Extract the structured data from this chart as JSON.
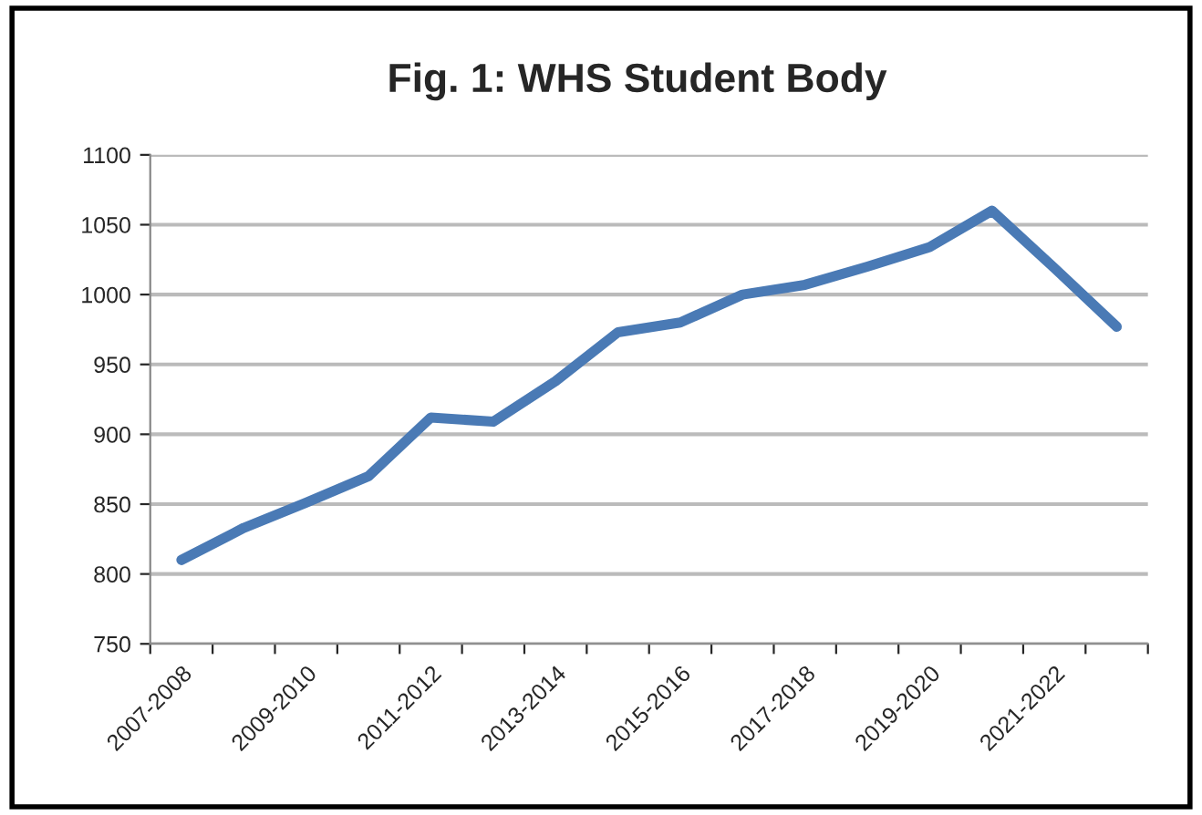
{
  "chart_data": {
    "type": "line",
    "title": "Fig. 1: WHS Student Body",
    "categories": [
      "2007-2008",
      null,
      "2009-2010",
      null,
      "2011-2012",
      null,
      "2013-2014",
      null,
      "2015-2016",
      null,
      "2017-2018",
      null,
      "2019-2020",
      null,
      "2021-2022",
      null
    ],
    "series": [
      {
        "color": "#4a7ab5",
        "values": [
          810,
          833,
          851,
          870,
          912,
          909,
          938,
          973,
          980,
          1000,
          1007,
          1020,
          1034,
          1060,
          1019,
          977
        ]
      }
    ],
    "ylim": [
      750,
      1100
    ],
    "yticks": [
      750,
      800,
      850,
      900,
      950,
      1000,
      1050,
      1100
    ],
    "grid": "y",
    "legend": false,
    "marker": "none",
    "line_style": "solid"
  }
}
